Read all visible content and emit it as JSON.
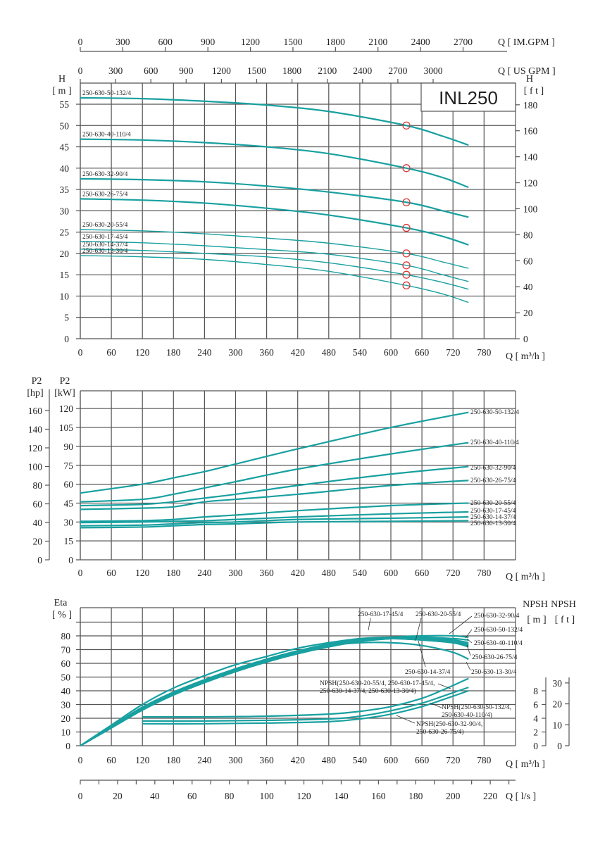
{
  "model_box": "INL250",
  "colors": {
    "curve": "#19a0a0",
    "grid": "#555555",
    "duty_point": "#d9383a"
  },
  "top_axes": {
    "im_gpm": {
      "label": "Q [ IM.GPM ]",
      "ticks": [
        0,
        300,
        600,
        900,
        1200,
        1500,
        1800,
        2100,
        2400,
        2700
      ]
    },
    "us_gpm": {
      "label": "Q [ US GPM ]",
      "ticks": [
        0,
        300,
        600,
        900,
        1200,
        1500,
        1800,
        2100,
        2400,
        2700,
        3000
      ]
    }
  },
  "bottom_axis_ls": {
    "label": "Q [ l/s ]",
    "ticks": [
      0,
      20,
      40,
      60,
      80,
      100,
      120,
      140,
      160,
      180,
      200,
      220
    ]
  },
  "chart_data": [
    {
      "type": "line",
      "xlabel": "Q [ m³/h ]",
      "ylabel": "H",
      "yunit": "[ m ]",
      "y2label": "H",
      "y2unit": "[ f t ]",
      "xticks": [
        0,
        60,
        120,
        180,
        240,
        300,
        360,
        420,
        480,
        540,
        600,
        660,
        720,
        780
      ],
      "yticks": [
        0,
        5,
        10,
        15,
        20,
        25,
        30,
        35,
        40,
        45,
        50,
        55
      ],
      "y2ticks": [
        0,
        20,
        40,
        60,
        80,
        100,
        120,
        140,
        160,
        180
      ],
      "xlim": [
        0,
        840
      ],
      "ylim": [
        0,
        60
      ],
      "grid": true,
      "duty_point_q": 630,
      "x": [
        0,
        120,
        240,
        360,
        480,
        630,
        700,
        750
      ],
      "series": [
        {
          "name": "250-630-50-132/4",
          "values": [
            56.5,
            56.3,
            55.7,
            54.8,
            53.3,
            50.0,
            47.5,
            45.4
          ]
        },
        {
          "name": "250-630-40-110/4",
          "values": [
            46.8,
            46.6,
            46.0,
            45.0,
            43.4,
            40.0,
            37.8,
            35.5
          ]
        },
        {
          "name": "250-630-32-90/4",
          "values": [
            37.5,
            37.3,
            36.8,
            35.8,
            34.4,
            32.0,
            30.0,
            28.5
          ]
        },
        {
          "name": "250-630-26-75/4",
          "values": [
            32.8,
            32.5,
            31.8,
            30.6,
            29.0,
            26.0,
            24.0,
            22.0
          ]
        },
        {
          "name": "250-630-20-55/4",
          "values": [
            25.6,
            25.3,
            24.6,
            23.6,
            22.4,
            20.0,
            18.0,
            16.5
          ]
        },
        {
          "name": "250-630-17-45/4",
          "values": [
            22.8,
            22.5,
            21.8,
            20.9,
            19.8,
            17.2,
            15.0,
            13.4
          ]
        },
        {
          "name": "250-630-14-37/4",
          "values": [
            21.0,
            20.7,
            20.0,
            19.2,
            17.8,
            15.0,
            13.2,
            11.6
          ]
        },
        {
          "name": "250-630-13-30/4",
          "values": [
            19.5,
            19.2,
            18.6,
            17.4,
            15.8,
            12.5,
            10.5,
            8.5
          ]
        }
      ]
    },
    {
      "type": "line",
      "xlabel": "Q [ m³/h ]",
      "ylabel": "P2",
      "yunit": "[kW]",
      "y2label": "P2",
      "y2unit": "[hp]",
      "xticks": [
        0,
        60,
        120,
        180,
        240,
        300,
        360,
        420,
        480,
        540,
        600,
        660,
        720,
        780
      ],
      "yticks": [
        0,
        15,
        30,
        45,
        60,
        75,
        90,
        105,
        120
      ],
      "y2ticks": [
        0,
        20,
        40,
        60,
        80,
        100,
        120,
        140,
        160
      ],
      "xlim": [
        0,
        840
      ],
      "ylim": [
        0,
        134
      ],
      "grid": true,
      "x": [
        0,
        120,
        180,
        240,
        300,
        420,
        600,
        750
      ],
      "series": [
        {
          "name": "250-630-50-132/4",
          "values": [
            53,
            60,
            65,
            70,
            76,
            88,
            105,
            117
          ]
        },
        {
          "name": "250-630-40-110/4",
          "values": [
            46,
            48,
            52,
            57,
            62,
            72,
            84,
            93
          ]
        },
        {
          "name": "250-630-32-90/4",
          "values": [
            43,
            44,
            46,
            49,
            52,
            59,
            68,
            74
          ]
        },
        {
          "name": "250-630-26-75/4",
          "values": [
            40,
            41,
            42,
            46,
            48,
            52,
            59,
            63
          ]
        },
        {
          "name": "250-630-20-55/4",
          "values": [
            30.5,
            31,
            32,
            34,
            35.5,
            39,
            43,
            45
          ]
        },
        {
          "name": "250-630-17-45/4",
          "values": [
            29.5,
            30,
            30.5,
            31,
            32,
            34,
            36.5,
            38
          ]
        },
        {
          "name": "250-630-14-37/4",
          "values": [
            27,
            27.5,
            28.5,
            29.5,
            30,
            32,
            33,
            34
          ]
        },
        {
          "name": "250-630-13-30/4",
          "values": [
            25.5,
            26,
            27,
            28,
            28.5,
            30,
            30.5,
            31
          ]
        }
      ]
    },
    {
      "type": "line",
      "xlabel": "Q [ m³/h ]",
      "ylabel": "Eta",
      "yunit": "[ % ]",
      "npsh_m_label": "NPSH",
      "npsh_m_unit": "[ m ]",
      "npsh_ft_label": "NPSH",
      "npsh_ft_unit": "[ f t ]",
      "xticks": [
        0,
        60,
        120,
        180,
        240,
        300,
        360,
        420,
        480,
        540,
        600,
        660,
        720,
        780
      ],
      "yticks": [
        0,
        10,
        20,
        30,
        40,
        50,
        60,
        70,
        80
      ],
      "npsh_m_ticks": [
        0,
        2,
        4,
        6,
        8
      ],
      "npsh_ft_ticks": [
        0,
        10,
        20,
        30
      ],
      "xlim": [
        0,
        840
      ],
      "ylim": [
        0,
        100
      ],
      "grid": true,
      "x": [
        0,
        60,
        120,
        180,
        240,
        300,
        360,
        420,
        480,
        540,
        600,
        660,
        720,
        750
      ],
      "eta_series": [
        {
          "name": "250-630-50-132/4",
          "values": [
            0,
            13,
            26,
            37,
            46,
            54,
            61,
            67,
            72,
            76,
            78,
            79,
            78,
            77
          ]
        },
        {
          "name": "250-630-40-110/4",
          "values": [
            0,
            13,
            26,
            37,
            46,
            54,
            61,
            67,
            72,
            76,
            78,
            78,
            76,
            74
          ]
        },
        {
          "name": "250-630-32-90/4",
          "values": [
            0,
            13,
            26,
            37,
            46,
            55,
            62,
            68,
            73,
            77,
            79,
            80,
            80,
            79
          ]
        },
        {
          "name": "250-630-26-75/4",
          "values": [
            0,
            13,
            27,
            38,
            47,
            55,
            62,
            68,
            73,
            76,
            78,
            77,
            75,
            72
          ]
        },
        {
          "name": "250-630-20-55/4",
          "values": [
            0,
            14,
            28,
            39,
            48,
            56,
            63,
            69,
            74,
            77,
            79,
            79,
            77,
            75
          ]
        },
        {
          "name": "250-630-17-45/4",
          "values": [
            0,
            15,
            30,
            42,
            51,
            59,
            65,
            71,
            75,
            78,
            79,
            78,
            76,
            74
          ]
        },
        {
          "name": "250-630-14-37/4",
          "values": [
            0,
            14,
            28,
            39,
            48,
            56,
            63,
            69,
            74,
            77,
            78,
            77,
            75,
            73
          ]
        },
        {
          "name": "250-630-13-30/4",
          "values": [
            0,
            14,
            28,
            39,
            48,
            56,
            63,
            69,
            73,
            75,
            75,
            73,
            68,
            63
          ]
        }
      ],
      "npsh_x": [
        120,
        240,
        360,
        480,
        540,
        600,
        660,
        700,
        750
      ],
      "npsh_series": [
        {
          "name": "NPSH(250-630-20-55/4, 250-630-17-45/4, 250-630-14-37/4, 250-630-13-30/4)",
          "values": [
            4.2,
            4.2,
            4.3,
            4.6,
            5.0,
            5.7,
            6.9,
            8.1,
            9.8
          ]
        },
        {
          "name": "NPSH(250-630-50-132/4, 250-630-40-110/4)",
          "values": [
            3.6,
            3.6,
            3.7,
            3.9,
            4.3,
            5.1,
            6.2,
            7.2,
            8.5
          ]
        },
        {
          "name": "NPSH(250-630-32-90/4, 250-630-26-75/4)",
          "values": [
            3.2,
            3.2,
            3.3,
            3.5,
            3.9,
            4.6,
            5.7,
            6.7,
            8.0
          ]
        }
      ],
      "annotations": {
        "eta_17_45": "250-630-17-45/4",
        "eta_20_55": "250-630-20-55/4",
        "eta_32_90": "250-630-32-90/4",
        "eta_50_132": "250-630-50-132/4",
        "eta_40_110": "250-630-40-110/4",
        "eta_26_75": "250-630-26-75/4",
        "eta_14_37": "250-630-14-37/4",
        "eta_13_30": "250-630-13-30/4",
        "npsh_a_line1": "NPSH(250-630-20-55/4, 250-630-17-45/4,",
        "npsh_a_line2": "250-630-14-37/4, 250-630-13-30/4)",
        "npsh_b_line1": "NPSH(250-630-50-132/4,",
        "npsh_b_line2": "250-630-40-110/4)",
        "npsh_c_line1": "NPSH(250-630-32-90/4,",
        "npsh_c_line2": "250-630-26-75/4)"
      }
    }
  ]
}
